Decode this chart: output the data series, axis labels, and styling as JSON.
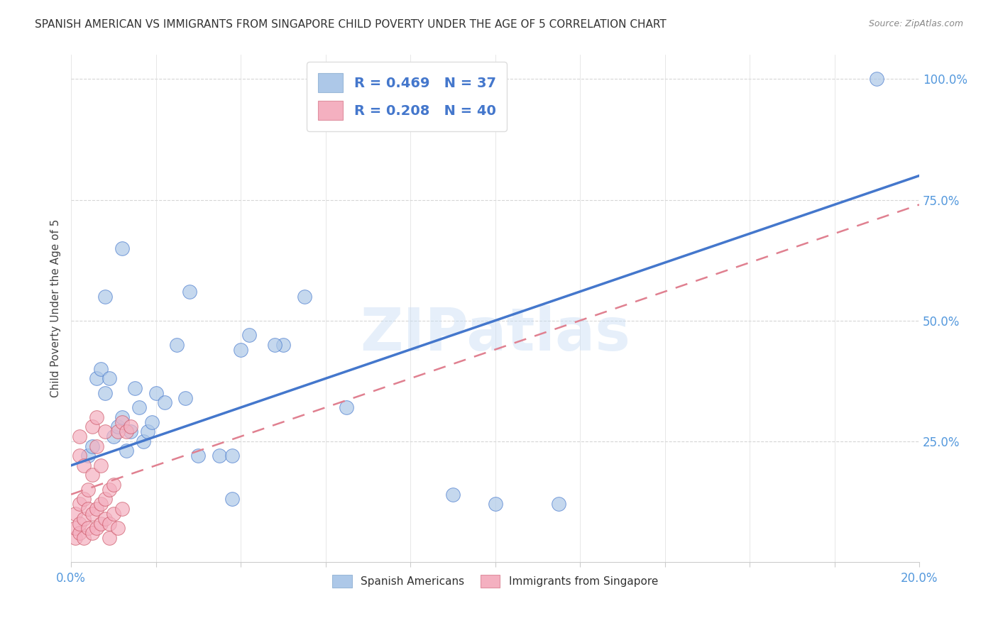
{
  "title": "SPANISH AMERICAN VS IMMIGRANTS FROM SINGAPORE CHILD POVERTY UNDER THE AGE OF 5 CORRELATION CHART",
  "source": "Source: ZipAtlas.com",
  "ylabel": "Child Poverty Under the Age of 5",
  "xlim": [
    0.0,
    0.2
  ],
  "ylim": [
    0.0,
    1.05
  ],
  "xticks": [
    0.0,
    0.02,
    0.04,
    0.06,
    0.08,
    0.1,
    0.12,
    0.14,
    0.16,
    0.18,
    0.2
  ],
  "xticklabels": [
    "0.0%",
    "",
    "",
    "",
    "",
    "",
    "",
    "",
    "",
    "",
    "20.0%"
  ],
  "yticks": [
    0.25,
    0.5,
    0.75,
    1.0
  ],
  "yticklabels": [
    "25.0%",
    "50.0%",
    "75.0%",
    "100.0%"
  ],
  "blue_R": 0.469,
  "blue_N": 37,
  "pink_R": 0.208,
  "pink_N": 40,
  "legend_label_blue": "Spanish Americans",
  "legend_label_pink": "Immigrants from Singapore",
  "watermark": "ZIPatlas",
  "blue_color": "#adc8e8",
  "pink_color": "#f4b0c0",
  "blue_line_color": "#4477cc",
  "pink_line_color": "#e08090",
  "tick_color": "#5599dd",
  "blue_trend_x0": 0.0,
  "blue_trend_y0": 0.2,
  "blue_trend_x1": 0.2,
  "blue_trend_y1": 0.8,
  "pink_trend_x0": 0.0,
  "pink_trend_y0": 0.14,
  "pink_trend_x1": 0.2,
  "pink_trend_y1": 0.74,
  "blue_scatter_x": [
    0.004,
    0.005,
    0.006,
    0.007,
    0.008,
    0.009,
    0.01,
    0.011,
    0.012,
    0.013,
    0.014,
    0.015,
    0.016,
    0.017,
    0.018,
    0.019,
    0.02,
    0.022,
    0.025,
    0.028,
    0.03,
    0.035,
    0.038,
    0.04,
    0.042,
    0.05,
    0.055,
    0.065,
    0.09,
    0.1,
    0.115,
    0.19,
    0.008,
    0.012,
    0.027,
    0.038,
    0.048
  ],
  "blue_scatter_y": [
    0.22,
    0.24,
    0.38,
    0.4,
    0.35,
    0.38,
    0.26,
    0.28,
    0.3,
    0.23,
    0.27,
    0.36,
    0.32,
    0.25,
    0.27,
    0.29,
    0.35,
    0.33,
    0.45,
    0.56,
    0.22,
    0.22,
    0.22,
    0.44,
    0.47,
    0.45,
    0.55,
    0.32,
    0.14,
    0.12,
    0.12,
    1.0,
    0.55,
    0.65,
    0.34,
    0.13,
    0.45
  ],
  "pink_scatter_x": [
    0.001,
    0.001,
    0.001,
    0.002,
    0.002,
    0.002,
    0.002,
    0.002,
    0.003,
    0.003,
    0.003,
    0.003,
    0.004,
    0.004,
    0.004,
    0.005,
    0.005,
    0.005,
    0.005,
    0.006,
    0.006,
    0.006,
    0.006,
    0.007,
    0.007,
    0.007,
    0.008,
    0.008,
    0.008,
    0.009,
    0.009,
    0.009,
    0.01,
    0.01,
    0.011,
    0.011,
    0.012,
    0.012,
    0.013,
    0.014
  ],
  "pink_scatter_y": [
    0.05,
    0.07,
    0.1,
    0.06,
    0.08,
    0.12,
    0.22,
    0.26,
    0.05,
    0.09,
    0.13,
    0.2,
    0.07,
    0.11,
    0.15,
    0.06,
    0.1,
    0.18,
    0.28,
    0.07,
    0.11,
    0.24,
    0.3,
    0.08,
    0.12,
    0.2,
    0.09,
    0.13,
    0.27,
    0.05,
    0.08,
    0.15,
    0.1,
    0.16,
    0.07,
    0.27,
    0.11,
    0.29,
    0.27,
    0.28
  ]
}
